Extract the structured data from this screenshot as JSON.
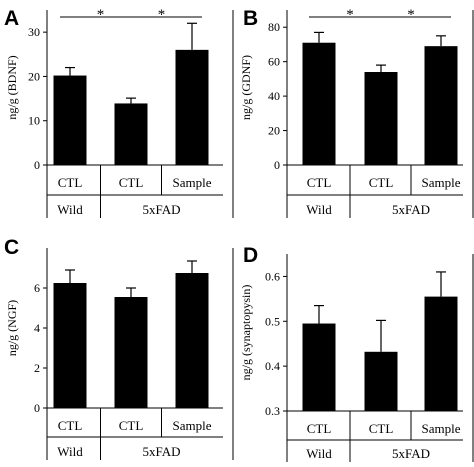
{
  "chart_data": [
    {
      "panel": "A",
      "type": "bar",
      "ylabel": "ng/g (BDNF)",
      "ylim": [
        0,
        35
      ],
      "yticks": [
        0,
        10,
        20,
        30
      ],
      "categories": [
        "CTL",
        "CTL",
        "Sample"
      ],
      "groups": [
        {
          "label": "Wild",
          "categories": [
            0
          ]
        },
        {
          "label": "5xFAD",
          "categories": [
            1,
            2
          ]
        }
      ],
      "values": [
        20.2,
        13.9,
        26.0
      ],
      "errors": [
        1.8,
        1.2,
        6.0
      ],
      "significance": [
        {
          "from": 0,
          "to": 1,
          "label": "*"
        },
        {
          "from": 1,
          "to": 2,
          "label": "*"
        }
      ]
    },
    {
      "panel": "B",
      "type": "bar",
      "ylabel": "ng/g (GDNF)",
      "ylim": [
        0,
        90
      ],
      "yticks": [
        0,
        20,
        40,
        60,
        80
      ],
      "categories": [
        "CTL",
        "CTL",
        "Sample"
      ],
      "groups": [
        {
          "label": "Wild",
          "categories": [
            0
          ]
        },
        {
          "label": "5xFAD",
          "categories": [
            1,
            2
          ]
        }
      ],
      "values": [
        71.0,
        54.0,
        69.0
      ],
      "errors": [
        6.0,
        4.0,
        6.0
      ],
      "significance": [
        {
          "from": 0,
          "to": 1,
          "label": "*"
        },
        {
          "from": 1,
          "to": 2,
          "label": "*"
        }
      ]
    },
    {
      "panel": "C",
      "type": "bar",
      "ylabel": "ng/g (NGF)",
      "ylim": [
        0,
        8
      ],
      "yticks": [
        0,
        2,
        4,
        6
      ],
      "categories": [
        "CTL",
        "CTL",
        "Sample"
      ],
      "groups": [
        {
          "label": "Wild",
          "categories": [
            0
          ]
        },
        {
          "label": "5xFAD",
          "categories": [
            1,
            2
          ]
        }
      ],
      "values": [
        6.25,
        5.55,
        6.75
      ],
      "errors": [
        0.65,
        0.45,
        0.6
      ],
      "significance": []
    },
    {
      "panel": "D",
      "type": "bar",
      "ylabel": "ng/g (synaptopysin)",
      "ylim": [
        0.3,
        0.65
      ],
      "yticks": [
        0.3,
        0.4,
        0.5,
        0.6
      ],
      "categories": [
        "CTL",
        "CTL",
        "Sample"
      ],
      "groups": [
        {
          "label": "Wild",
          "categories": [
            0
          ]
        },
        {
          "label": "5xFAD",
          "categories": [
            1,
            2
          ]
        }
      ],
      "values": [
        0.495,
        0.432,
        0.555
      ],
      "errors": [
        0.04,
        0.07,
        0.055
      ],
      "significance": []
    }
  ]
}
